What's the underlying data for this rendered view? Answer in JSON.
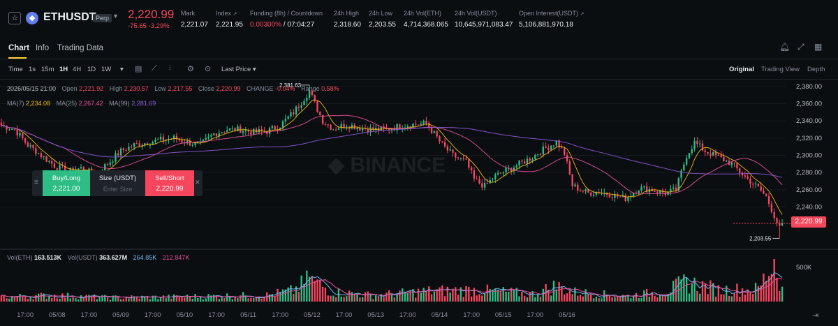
{
  "ticker": {
    "symbol": "ETHUSDT",
    "badge": "Perp",
    "last_price": "2,220.99",
    "change": "-75.65",
    "change_pct": "-3.29%",
    "stats": [
      {
        "label": "Mark",
        "value": "2,221.07"
      },
      {
        "label": "Index",
        "value": "2,221.95"
      },
      {
        "label": "Funding (8h) / Countdown",
        "value_red": "0.00300%",
        "value": " / 07:04:27"
      },
      {
        "label": "24h High",
        "value": "2,318.60"
      },
      {
        "label": "24h Low",
        "value": "2,203.55"
      },
      {
        "label": "24h Vol(ETH)",
        "value": "4,714,368.065"
      },
      {
        "label": "24h Vol(USDT)",
        "value": "10,645,971,083.47"
      },
      {
        "label": "Open Interest(USDT)",
        "value": "5,106,881,970.18"
      }
    ]
  },
  "tabs": [
    "Chart",
    "Info",
    "Trading Data"
  ],
  "toolbar": {
    "intervals": [
      "Time",
      "1s",
      "15m",
      "1H",
      "4H",
      "1D",
      "1W"
    ],
    "active_interval": "1H",
    "price_type": "Last Price",
    "views": [
      "Original",
      "Trading View",
      "Depth"
    ]
  },
  "ohlc": {
    "datetime": "2026/05/15 21:00",
    "open_label": "Open",
    "open": "2,221.92",
    "high_label": "High",
    "high": "2,230.57",
    "low_label": "Low",
    "low": "2,217.55",
    "close_label": "Close",
    "close": "2,220.99",
    "change_label": "CHANGE",
    "change": "-0.04%",
    "range_label": "Range",
    "range": "0.58%"
  },
  "ma": {
    "ma7_label": "MA(7)",
    "ma7": "2,234.08",
    "ma25_label": "MA(25)",
    "ma25": "2,267.42",
    "ma99_label": "MA(99)",
    "ma99": "2,281.69"
  },
  "volume_legend": {
    "vol_eth_label": "Vol(ETH)",
    "vol_eth": "163.513K",
    "vol_usdt_label": "Vol(USDT)",
    "vol_usdt": "363.627M",
    "ma1": "264.85K",
    "ma2": "212.847K"
  },
  "trade_panel": {
    "buy_label": "Buy/Long",
    "buy_price": "2,221.00",
    "size_label": "Size (USDT)",
    "size_placeholder": "Enter Size",
    "sell_label": "Sell/Short",
    "sell_price": "2,220.99"
  },
  "colors": {
    "up": "#2ebd85",
    "down": "#f6465d",
    "ma7": "#f0b90b",
    "ma25": "#e84f9a",
    "ma99": "#8e5bd8",
    "accent": "#fcd535"
  },
  "icons": [
    "star-icon",
    "eth-coin-icon",
    "bell-icon",
    "expand-icon",
    "grid-icon",
    "candle-type-icon",
    "indicator-icon",
    "settings-icon",
    "reset-icon",
    "scroll-to-end-icon"
  ],
  "chart_data": {
    "type": "candlestick",
    "interval": "1H",
    "y_ticks": [
      "2,380.00",
      "2,360.00",
      "2,340.00",
      "2,320.00",
      "2,300.00",
      "2,280.00",
      "2,260.00",
      "2,240.00"
    ],
    "ylim": [
      2195,
      2388
    ],
    "x_ticks": [
      "17:00",
      "05/08",
      "17:00",
      "05/09",
      "17:00",
      "05/10",
      "17:00",
      "05/11",
      "17:00",
      "05/12",
      "17:00",
      "05/13",
      "17:00",
      "05/14",
      "17:00",
      "05/15",
      "17:00",
      "05/16"
    ],
    "high_marker": "2,381.63",
    "low_marker": "2,203.55",
    "volume_axis_label": "500K",
    "price_anchors": [
      [
        0,
        2335
      ],
      [
        5,
        2330
      ],
      [
        10,
        2312
      ],
      [
        15,
        2300
      ],
      [
        20,
        2288
      ],
      [
        25,
        2281
      ],
      [
        30,
        2285
      ],
      [
        35,
        2278
      ],
      [
        40,
        2290
      ],
      [
        45,
        2305
      ],
      [
        50,
        2312
      ],
      [
        55,
        2315
      ],
      [
        60,
        2318
      ],
      [
        65,
        2320
      ],
      [
        70,
        2315
      ],
      [
        75,
        2312
      ],
      [
        80,
        2325
      ],
      [
        85,
        2330
      ],
      [
        90,
        2330
      ],
      [
        95,
        2327
      ],
      [
        100,
        2328
      ],
      [
        105,
        2335
      ],
      [
        110,
        2350
      ],
      [
        113,
        2362
      ],
      [
        116,
        2375
      ],
      [
        118,
        2360
      ],
      [
        121,
        2340
      ],
      [
        125,
        2331
      ],
      [
        130,
        2336
      ],
      [
        135,
        2332
      ],
      [
        140,
        2330
      ],
      [
        145,
        2330
      ],
      [
        150,
        2334
      ],
      [
        155,
        2336
      ],
      [
        160,
        2337
      ],
      [
        163,
        2325
      ],
      [
        166,
        2312
      ],
      [
        170,
        2300
      ],
      [
        175,
        2292
      ],
      [
        178,
        2272
      ],
      [
        182,
        2264
      ],
      [
        186,
        2276
      ],
      [
        190,
        2282
      ],
      [
        195,
        2290
      ],
      [
        200,
        2298
      ],
      [
        203,
        2305
      ],
      [
        206,
        2310
      ],
      [
        209,
        2316
      ],
      [
        212,
        2302
      ],
      [
        215,
        2265
      ],
      [
        218,
        2260
      ],
      [
        221,
        2256
      ],
      [
        225,
        2258
      ],
      [
        230,
        2254
      ],
      [
        235,
        2250
      ],
      [
        240,
        2262
      ],
      [
        245,
        2260
      ],
      [
        250,
        2256
      ],
      [
        254,
        2260
      ],
      [
        258,
        2300
      ],
      [
        261,
        2315
      ],
      [
        265,
        2305
      ],
      [
        270,
        2298
      ],
      [
        275,
        2290
      ],
      [
        280,
        2275
      ],
      [
        285,
        2262
      ],
      [
        288,
        2252
      ],
      [
        291,
        2230
      ],
      [
        293,
        2215
      ],
      [
        294,
        2222
      ]
    ],
    "volume_anchors": [
      [
        0,
        70
      ],
      [
        20,
        90
      ],
      [
        40,
        60
      ],
      [
        60,
        65
      ],
      [
        80,
        80
      ],
      [
        100,
        95
      ],
      [
        110,
        160
      ],
      [
        116,
        320
      ],
      [
        125,
        140
      ],
      [
        140,
        90
      ],
      [
        160,
        150
      ],
      [
        178,
        170
      ],
      [
        200,
        110
      ],
      [
        209,
        230
      ],
      [
        215,
        140
      ],
      [
        235,
        80
      ],
      [
        250,
        150
      ],
      [
        258,
        280
      ],
      [
        270,
        170
      ],
      [
        285,
        180
      ],
      [
        291,
        600
      ],
      [
        294,
        180
      ]
    ]
  }
}
